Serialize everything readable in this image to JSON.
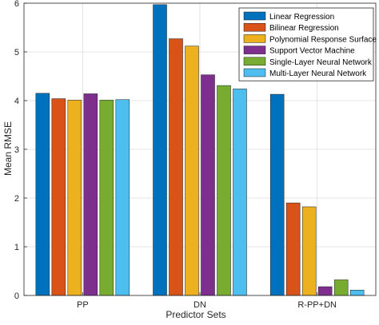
{
  "chart_data": {
    "type": "bar",
    "title": "",
    "xlabel": "Predictor Sets",
    "ylabel": "Mean RMSE",
    "categories": [
      "PP",
      "DN",
      "R-PP+DN"
    ],
    "ylim": [
      0,
      6
    ],
    "yticks": [
      "0",
      "1",
      "2",
      "3",
      "4",
      "5",
      "6"
    ],
    "grid": true,
    "legend_position": "top-right",
    "series": [
      {
        "name": "Linear Regression",
        "color": "#0072BD",
        "values": [
          4.15,
          5.97,
          4.13
        ]
      },
      {
        "name": "Bilinear Regression",
        "color": "#D95319",
        "values": [
          4.04,
          5.27,
          1.9
        ]
      },
      {
        "name": "Polynomial Response Surface",
        "color": "#EDB120",
        "values": [
          4.01,
          5.12,
          1.82
        ]
      },
      {
        "name": "Support Vector Machine",
        "color": "#7E2F8E",
        "values": [
          4.14,
          4.53,
          0.18
        ]
      },
      {
        "name": "Single-Layer Neural Network",
        "color": "#77AC30",
        "values": [
          4.01,
          4.31,
          0.32
        ]
      },
      {
        "name": "Multi-Layer Neural Network",
        "color": "#4DBEEE",
        "values": [
          4.02,
          4.24,
          0.11
        ]
      }
    ]
  }
}
